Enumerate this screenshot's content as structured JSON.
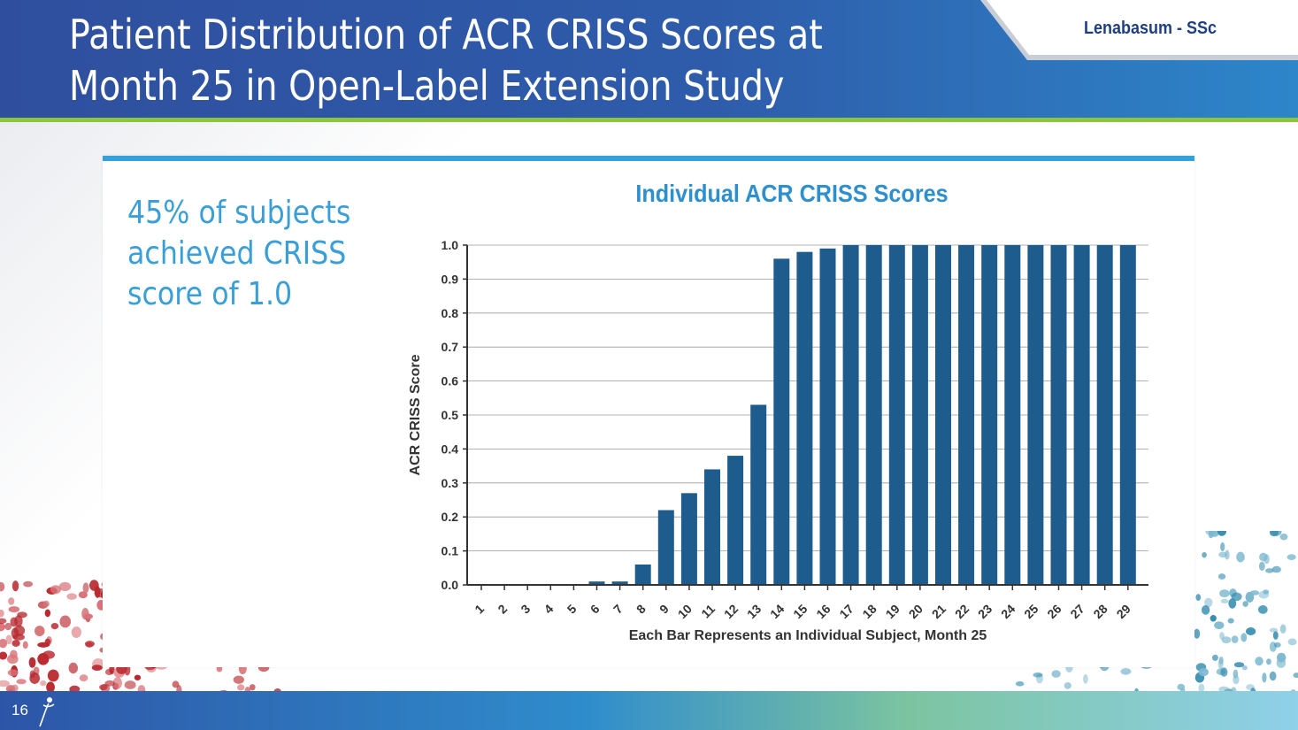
{
  "header": {
    "title": "Patient Distribution of ACR CRISS Scores at Month 25 in Open-Label Extension Study",
    "tag": "Lenabasum - SSc"
  },
  "callout": "45% of subjects achieved CRISS score of 1.0",
  "footer": {
    "page_number": "16"
  },
  "colors": {
    "bar": "#1f5c8e",
    "title_blue": "#2e8fcf",
    "accent_green": "#8cc63f",
    "header_blue": "#2f4f9e"
  },
  "chart_data": {
    "type": "bar",
    "title": "Individual ACR CRISS Scores",
    "xlabel": "Each Bar Represents an Individual Subject, Month 25",
    "ylabel": "ACR CRISS  Score",
    "ylim": [
      0,
      1.0
    ],
    "yticks": [
      "0.0",
      "0.1",
      "0.2",
      "0.3",
      "0.4",
      "0.5",
      "0.6",
      "0.7",
      "0.8",
      "0.9",
      "1.0"
    ],
    "grid": true,
    "categories": [
      "1",
      "2",
      "3",
      "4",
      "5",
      "6",
      "7",
      "8",
      "9",
      "10",
      "11",
      "12",
      "13",
      "14",
      "15",
      "16",
      "17",
      "18",
      "19",
      "20",
      "21",
      "22",
      "23",
      "24",
      "25",
      "26",
      "27",
      "28",
      "29"
    ],
    "values": [
      0,
      0,
      0,
      0,
      0,
      0.01,
      0.01,
      0.06,
      0.22,
      0.27,
      0.34,
      0.38,
      0.53,
      0.96,
      0.98,
      0.99,
      1.0,
      1.0,
      1.0,
      1.0,
      1.0,
      1.0,
      1.0,
      1.0,
      1.0,
      1.0,
      1.0,
      1.0,
      1.0
    ]
  }
}
